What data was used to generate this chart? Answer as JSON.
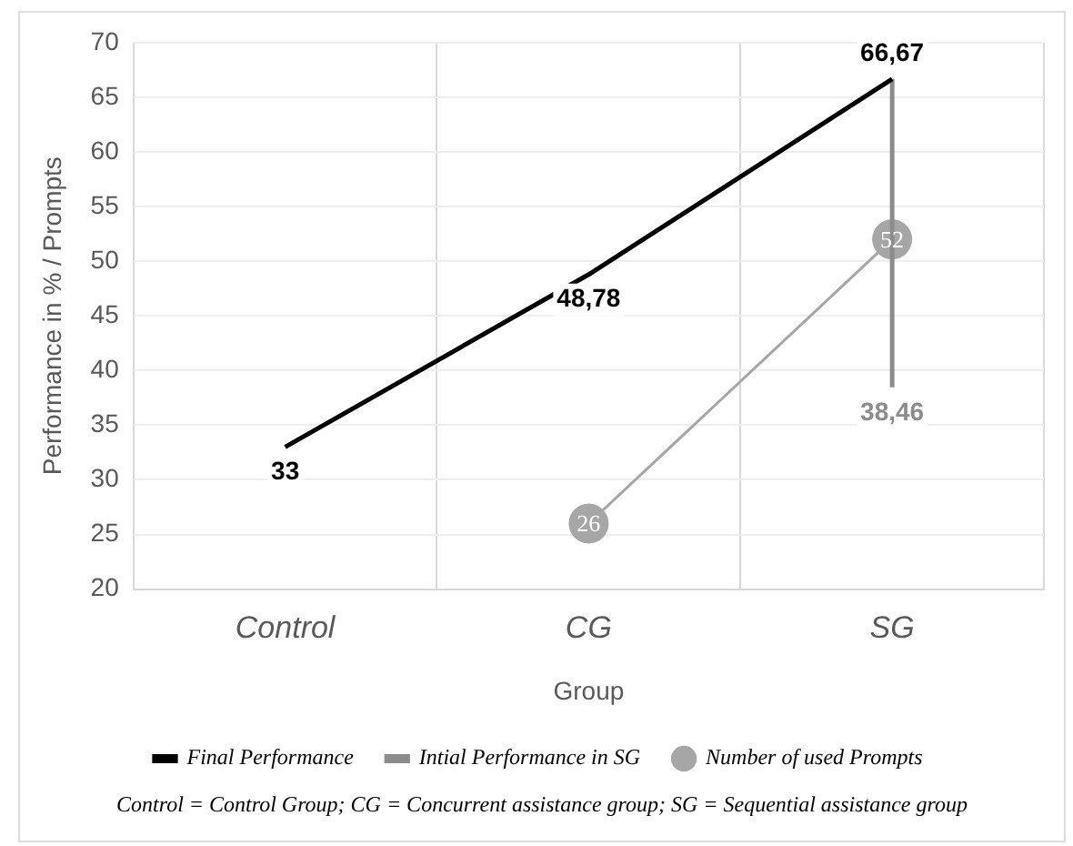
{
  "chart_data": {
    "type": "line",
    "xlabel": "Group",
    "ylabel": "Performance in % / Prompts",
    "categories": [
      "Control",
      "CG",
      "SG"
    ],
    "series": [
      {
        "name": "Final Performance",
        "color": "#000000",
        "marker": "none",
        "values": [
          33,
          48.78,
          66.67
        ],
        "value_labels": [
          "33",
          "48,78",
          "66,67"
        ]
      },
      {
        "name": "Intial Performance in SG",
        "color": "#8c8c8c",
        "marker": "none",
        "x": [
          "SG",
          "SG"
        ],
        "values": [
          38.46,
          66.67
        ],
        "value_labels": [
          "38,46",
          null
        ]
      },
      {
        "name": "Number of used Prompts",
        "color": "#a6a6a6",
        "marker": "circle",
        "values": [
          null,
          26,
          52
        ],
        "value_labels": [
          null,
          "26",
          "52"
        ]
      }
    ],
    "ylim": [
      20,
      70
    ],
    "yticks": [
      20,
      25,
      30,
      35,
      40,
      45,
      50,
      55,
      60,
      65,
      70
    ],
    "grid": true,
    "legend": "bottom",
    "annotations": [
      "Control = Control Group; CG = Concurrent assistance group; SG = Sequential assistance group"
    ]
  }
}
